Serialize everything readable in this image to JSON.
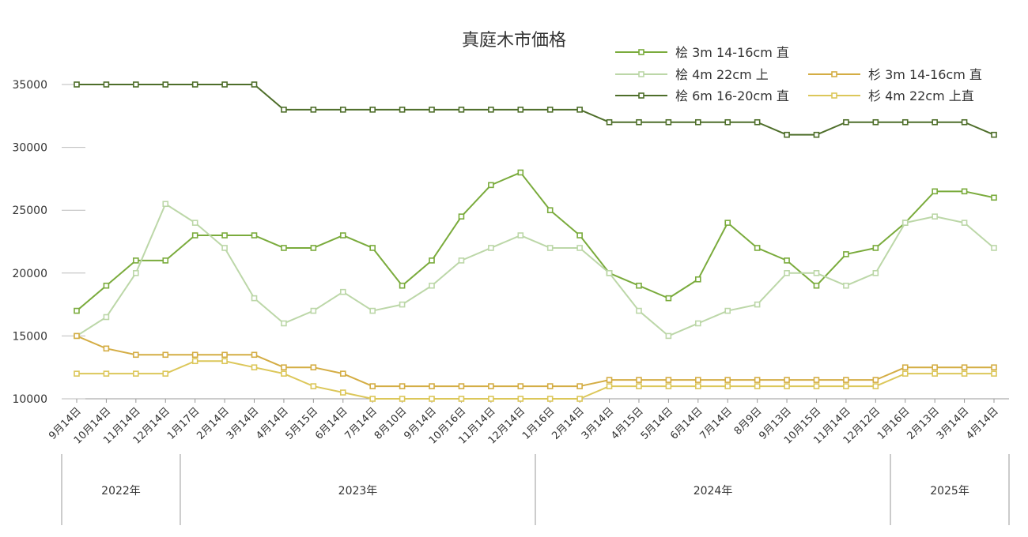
{
  "chart_data": {
    "type": "line",
    "title": "真庭木市価格",
    "xlabel": "",
    "ylabel": "",
    "ylim": [
      10000,
      35000
    ],
    "yticks": [
      10000,
      15000,
      20000,
      25000,
      30000,
      35000
    ],
    "grid": false,
    "legend_position": "top-right",
    "categories": [
      "9月14日",
      "10月14日",
      "11月14日",
      "12月14日",
      "1月17日",
      "2月14日",
      "3月14日",
      "4月14日",
      "5月15日",
      "6月14日",
      "7月14日",
      "8月10日",
      "9月14日",
      "10月16日",
      "11月14日",
      "12月14日",
      "1月16日",
      "2月14日",
      "3月14日",
      "4月15日",
      "5月14日",
      "6月14日",
      "7月14日",
      "8月9日",
      "9月13日",
      "10月15日",
      "11月14日",
      "12月12日",
      "1月16日",
      "2月13日",
      "3月14日",
      "4月14日"
    ],
    "year_groups": [
      {
        "label": "2022年",
        "start": 0,
        "end": 3
      },
      {
        "label": "2023年",
        "start": 4,
        "end": 15
      },
      {
        "label": "2024年",
        "start": 16,
        "end": 27
      },
      {
        "label": "2025年",
        "start": 28,
        "end": 31
      }
    ],
    "series": [
      {
        "name": "桧 3m 14-16cm 直",
        "color": "#7aab3c",
        "values": [
          17000,
          19000,
          21000,
          21000,
          23000,
          23000,
          23000,
          22000,
          22000,
          23000,
          22000,
          19000,
          21000,
          24500,
          27000,
          28000,
          25000,
          23000,
          20000,
          19000,
          18000,
          19500,
          24000,
          22000,
          21000,
          19000,
          21500,
          22000,
          24000,
          26500,
          26500,
          26000
        ]
      },
      {
        "name": "桧 4m 22cm 上",
        "color": "#bcd7a8",
        "values": [
          15000,
          16500,
          20000,
          25500,
          24000,
          22000,
          18000,
          16000,
          17000,
          18500,
          17000,
          17500,
          19000,
          21000,
          22000,
          23000,
          22000,
          22000,
          20000,
          17000,
          15000,
          16000,
          17000,
          17500,
          20000,
          20000,
          19000,
          20000,
          24000,
          24500,
          24000,
          22000
        ]
      },
      {
        "name": "桧 6m 16-20cm 直",
        "color": "#4e6e2a",
        "values": [
          35000,
          35000,
          35000,
          35000,
          35000,
          35000,
          35000,
          33000,
          33000,
          33000,
          33000,
          33000,
          33000,
          33000,
          33000,
          33000,
          33000,
          33000,
          32000,
          32000,
          32000,
          32000,
          32000,
          32000,
          31000,
          31000,
          32000,
          32000,
          32000,
          32000,
          32000,
          31000
        ]
      },
      {
        "name": "杉 3m 14-16cm 直",
        "color": "#d4ad44",
        "values": [
          15000,
          14000,
          13500,
          13500,
          13500,
          13500,
          13500,
          12500,
          12500,
          12000,
          11000,
          11000,
          11000,
          11000,
          11000,
          11000,
          11000,
          11000,
          11500,
          11500,
          11500,
          11500,
          11500,
          11500,
          11500,
          11500,
          11500,
          11500,
          12500,
          12500,
          12500,
          12500
        ]
      },
      {
        "name": "杉 4m 22cm 上直",
        "color": "#dcc75a",
        "values": [
          12000,
          12000,
          12000,
          12000,
          13000,
          13000,
          12500,
          12000,
          11000,
          10500,
          10000,
          10000,
          10000,
          10000,
          10000,
          10000,
          10000,
          10000,
          11000,
          11000,
          11000,
          11000,
          11000,
          11000,
          11000,
          11000,
          11000,
          11000,
          12000,
          12000,
          12000,
          12000
        ]
      }
    ]
  }
}
